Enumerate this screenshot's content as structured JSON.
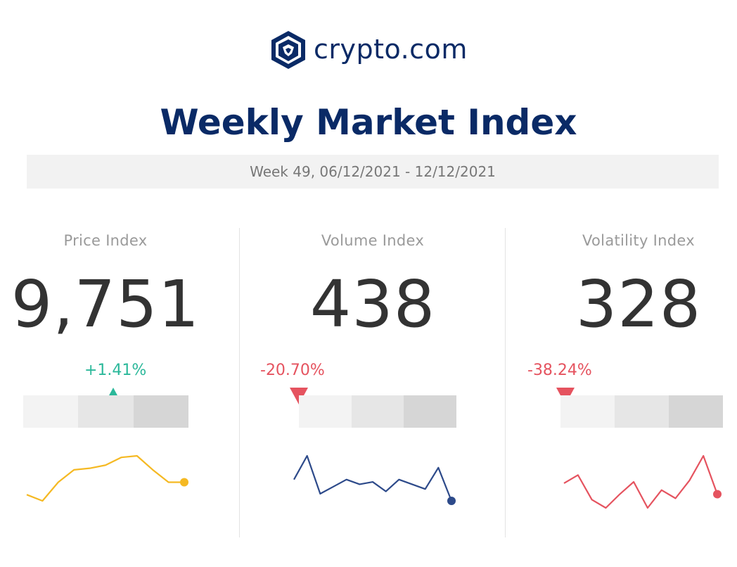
{
  "brand": {
    "name": "crypto.com"
  },
  "title": "Weekly Market Index",
  "week": "Week 49, 06/12/2021 - 12/12/2021",
  "colors": {
    "navy": "#0a2a66",
    "up": "#2bb89a",
    "down": "#e5535f"
  },
  "indices": [
    {
      "label": "Price Index",
      "value": "9,751",
      "change": "+1.41%",
      "direction": "up",
      "line_color": "#f5b923",
      "spark": [
        5,
        3,
        9,
        13,
        13.5,
        14.5,
        17,
        17.5,
        13,
        9,
        9
      ]
    },
    {
      "label": "Volume Index",
      "value": "438",
      "change": "-20.70%",
      "direction": "down",
      "line_color": "#2d4a8a",
      "spark": [
        10,
        20,
        4,
        7,
        10,
        8,
        9,
        5,
        10,
        8,
        6,
        15,
        1
      ]
    },
    {
      "label": "Volatility Index",
      "value": "328",
      "change": "-38.24%",
      "direction": "down",
      "line_color": "#e5535f",
      "spark": [
        6,
        12,
        -6,
        -12,
        -2,
        7,
        -12,
        1,
        -5,
        8,
        26,
        -2
      ]
    }
  ]
}
